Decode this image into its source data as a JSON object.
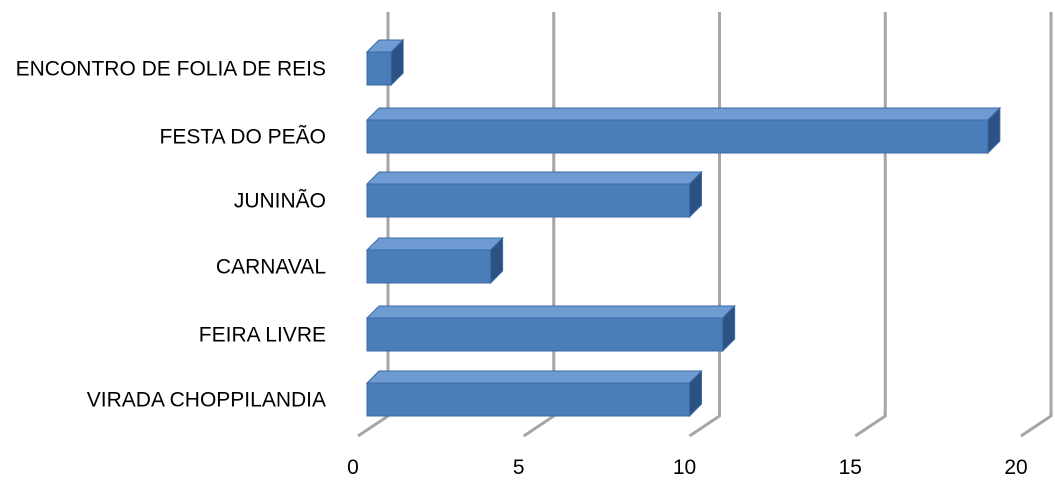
{
  "chart_data": {
    "type": "bar",
    "orientation": "horizontal",
    "style": "3d",
    "categories": [
      "ENCONTRO DE FOLIA DE REIS",
      "FESTA DO PEÃO",
      "JUNINÃO",
      "CARNAVAL",
      "FEIRA LIVRE",
      "VIRADA CHOPPILANDIA"
    ],
    "values": [
      1,
      19,
      10,
      4,
      11,
      10
    ],
    "xticks": [
      "0",
      "5",
      "10",
      "15",
      "20"
    ],
    "xlim": [
      0,
      20
    ],
    "grid": true,
    "legend": "none",
    "colors": {
      "bar_front": "#4a7ebb",
      "bar_top": "#6f9bd3",
      "bar_side": "#2c5283",
      "bar_edge": "#3a6aa5",
      "grid": "#a6a6a6"
    }
  }
}
